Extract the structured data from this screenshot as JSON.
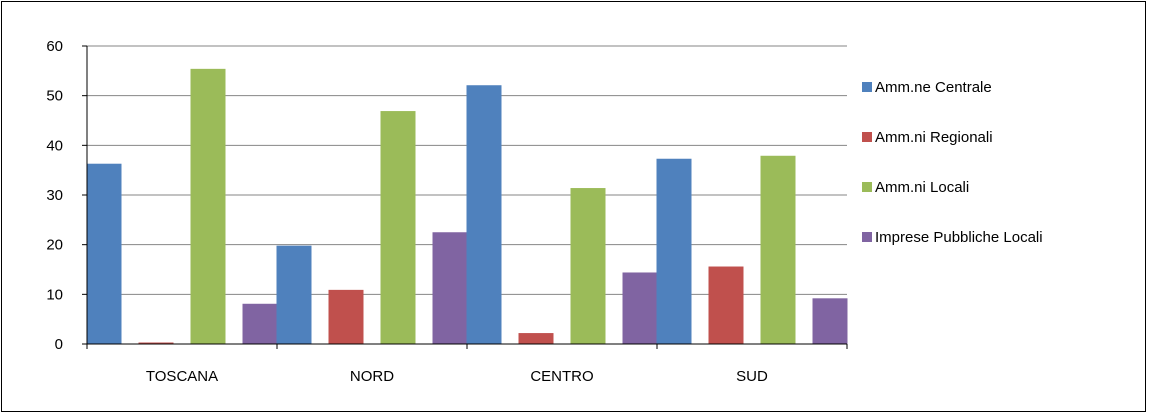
{
  "chart_data": {
    "type": "bar",
    "categories": [
      "TOSCANA",
      "NORD",
      "CENTRO",
      "SUD"
    ],
    "series": [
      {
        "name": "Amm.ne Centrale",
        "values": [
          36.3,
          19.8,
          52.1,
          37.3
        ],
        "color": "#4f81bd"
      },
      {
        "name": "Amm.ni Regionali",
        "values": [
          0.3,
          10.9,
          2.2,
          15.6
        ],
        "color": "#c0504d"
      },
      {
        "name": "Amm.ni Locali",
        "values": [
          55.4,
          46.9,
          31.4,
          37.9
        ],
        "color": "#9bbb59"
      },
      {
        "name": "Imprese Pubbliche Locali",
        "values": [
          8.1,
          22.5,
          14.4,
          9.2
        ],
        "color": "#8064a2"
      }
    ],
    "yticks": [
      "0",
      "10",
      "20",
      "30",
      "40",
      "50",
      "60"
    ],
    "ylim": [
      0,
      60
    ],
    "grid": true,
    "legend_position": "right",
    "title": "",
    "xlabel": "",
    "ylabel": ""
  }
}
